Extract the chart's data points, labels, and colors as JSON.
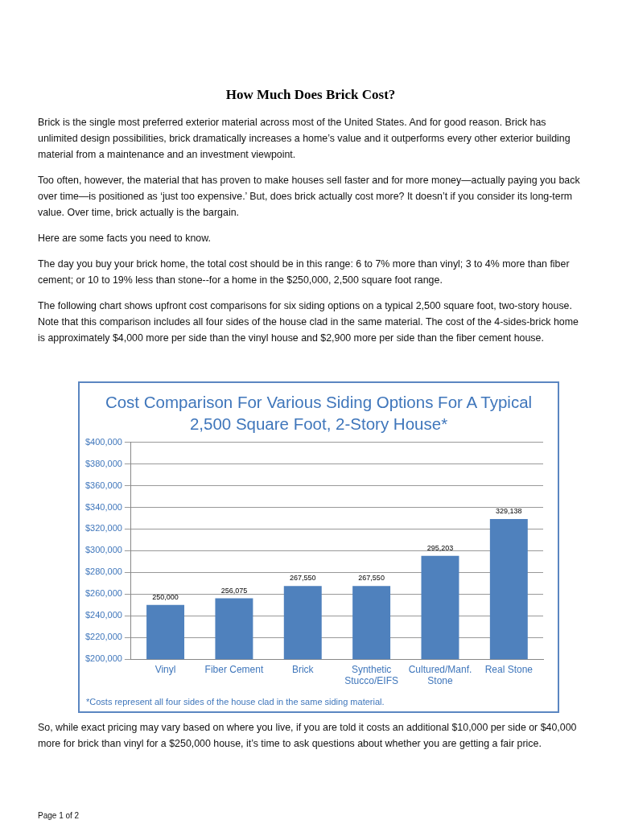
{
  "chart_data": {
    "type": "bar",
    "title": "Cost Comparison For Various Siding Options For A Typical 2,500 Square Foot, 2-Story House*",
    "categories": [
      "Vinyl",
      "Fiber Cement",
      "Brick",
      "Synthetic Stucco/EIFS",
      "Cultured/Manf. Stone",
      "Real Stone"
    ],
    "values": [
      250000,
      256075,
      267550,
      267550,
      295203,
      329138
    ],
    "value_labels": [
      "250,000",
      "256,075",
      "267,550",
      "267,550",
      "295,203",
      "329,138"
    ],
    "color": "#4f81bd",
    "ylim": [
      200000,
      400000
    ],
    "yticks": [
      {
        "value": 200000,
        "label": "$200,000"
      },
      {
        "value": 220000,
        "label": "$220,000"
      },
      {
        "value": 240000,
        "label": "$240,000"
      },
      {
        "value": 260000,
        "label": "$260,000"
      },
      {
        "value": 280000,
        "label": "$280,000"
      },
      {
        "value": 300000,
        "label": "$300,000"
      },
      {
        "value": 320000,
        "label": "$320,000"
      },
      {
        "value": 340000,
        "label": "$340,000"
      },
      {
        "value": 360000,
        "label": "$360,000"
      },
      {
        "value": 380000,
        "label": "$380,000"
      },
      {
        "value": 400000,
        "label": "$400,000"
      }
    ],
    "grid": "y",
    "legend": false,
    "annotations": [
      "How Much Does Brick Cost?",
      "Brick is the single most preferred exterior material across most of the United States.  And for good reason.  Brick has unlimited design possibilities, brick dramatically increases a home’s value and it outperforms every other exterior building material from a maintenance and an investment viewpoint.",
      "Too often, however, the material that has proven to make houses sell faster and for more money—actually paying you back over time—is positioned as ‘just too expensive.’  But, does brick actually cost more?  It doesn’t if you consider its long-term value.  Over time, brick actually is the bargain.",
      "Here are some facts you need to know.",
      "The day you buy your brick home, the total cost should be in this range:  6 to 7% more than vinyl; 3 to 4% more than fiber cement; or 10 to 19% less than stone--for a home in the $250,000, 2,500 square foot range.",
      "The following chart shows upfront cost comparisons for six siding options on a typical 2,500 square foot, two-story house.  Note that this comparison includes all four sides of the house clad in the same material.  The cost of the 4-sides-brick home is approximately $4,000 more per side than the vinyl house and $2,900 more per side than the fiber cement house.",
      "*Costs represent all four sides of the house clad in the same siding material.",
      "So, while exact pricing may vary based on where you live, if you are told it costs an additional $10,000 per side or $40,000 more for brick than vinyl for a $250,000 house, it’s time to ask questions about whether you are getting a fair price.",
      "Page 1 of 2"
    ]
  }
}
